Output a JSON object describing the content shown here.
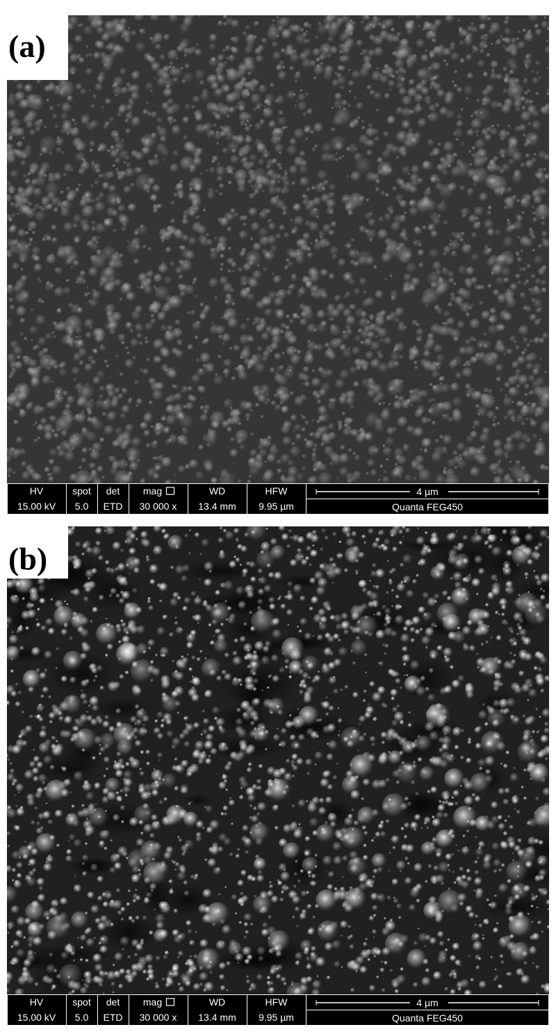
{
  "panels": [
    {
      "label": "(a)",
      "info": {
        "headers": [
          "HV",
          "spot",
          "det",
          "mag",
          "WD",
          "HFW"
        ],
        "values": [
          "15.00 kV",
          "5.0",
          "ETD",
          "30 000 x",
          "13.4 mm",
          "9.95 µm"
        ],
        "scale_bar": "4 µm",
        "instrument": "Quanta FEG450"
      }
    },
    {
      "label": "(b)",
      "info": {
        "headers": [
          "HV",
          "spot",
          "det",
          "mag",
          "WD",
          "HFW"
        ],
        "values": [
          "15.00 kV",
          "5.0",
          "ETD",
          "30 000 x",
          "13.4 mm",
          "9.95 µm"
        ],
        "scale_bar": "4 µm",
        "instrument": "Quanta FEG450"
      }
    }
  ]
}
